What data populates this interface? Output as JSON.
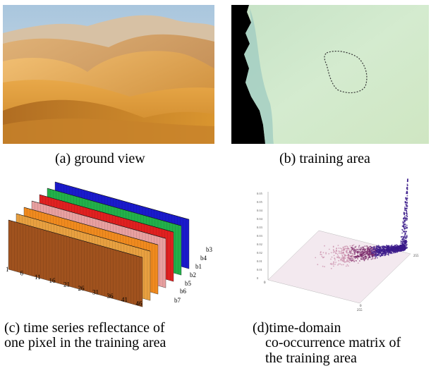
{
  "figure": {
    "captions": {
      "a": "(a) ground view",
      "b": "(b) training area",
      "c_line1": "(c) time series reflectance of",
      "c_line2": "one pixel in the training area",
      "d_line1": "(d)time-domain",
      "d_line2": "co-occurrence matrix of",
      "d_line3": "the training area"
    },
    "panel_c": {
      "x_ticks": [
        "1",
        "6",
        "11",
        "16",
        "21",
        "26",
        "31",
        "36",
        "41",
        "46"
      ],
      "band_labels": [
        "b3",
        "b4",
        "b1",
        "b2",
        "b5",
        "b6",
        "b7"
      ],
      "band_colors": [
        "#1a1acc",
        "#22b04a",
        "#e02020",
        "#e8a0a0",
        "#f08a1e",
        "#e8a040",
        "#a0521e"
      ]
    },
    "panel_d": {
      "y_ticks": [
        "0.05",
        "0.05",
        "0.04",
        "0.04",
        "0.03",
        "0.03",
        "0.02",
        "0.02",
        "0.01",
        "0.01",
        "0"
      ],
      "right_label": "255",
      "bottom_labels": [
        "0",
        "255"
      ],
      "left_zero": "0"
    }
  }
}
